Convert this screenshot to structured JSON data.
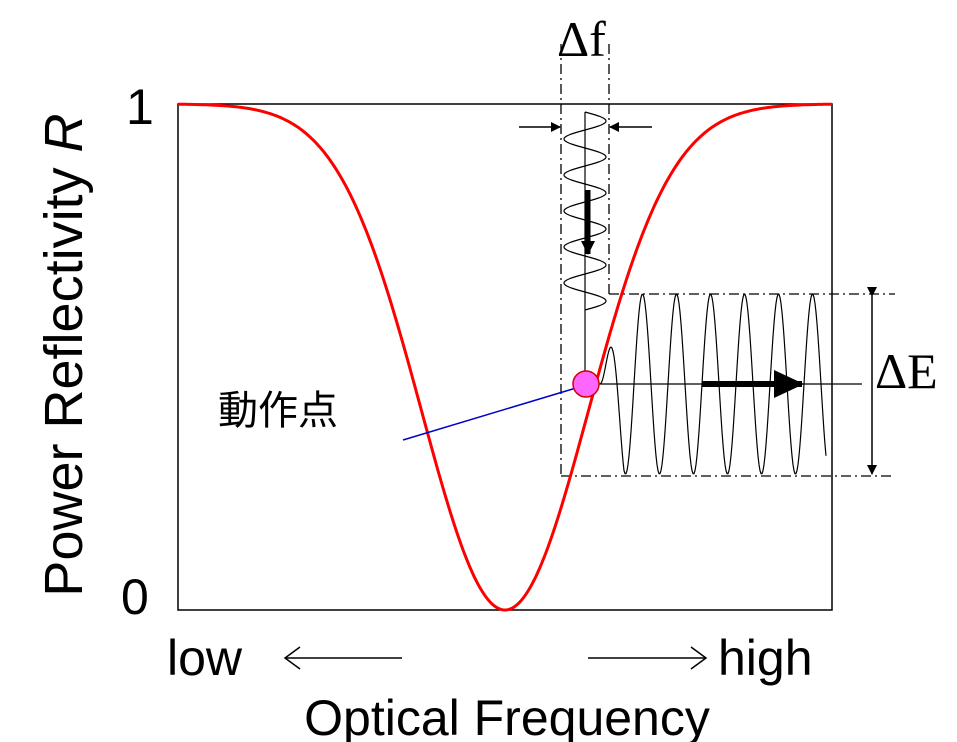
{
  "y_axis": {
    "label": "Power Reflectivity ",
    "symbol": "R",
    "tick_top": "1",
    "tick_bottom": "0"
  },
  "x_axis": {
    "label": "Optical Frequency",
    "low": "low",
    "high": "high",
    "arrow_left": "←",
    "arrow_right": "→"
  },
  "annotations": {
    "delta_f": "Δf",
    "delta_E": "ΔE",
    "operating_point": "動作点"
  },
  "colors": {
    "curve": "#ff0000",
    "operating_point_fill": "#ff66ff",
    "leader_line": "#0000cc"
  }
}
